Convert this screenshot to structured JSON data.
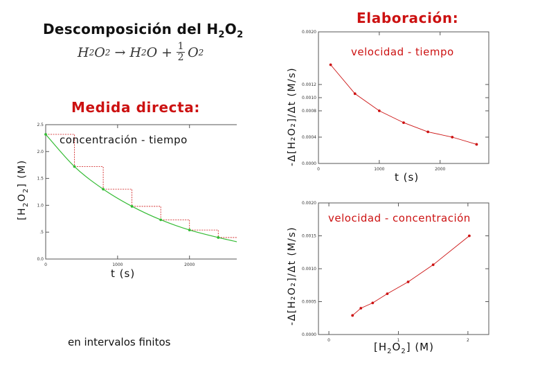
{
  "titles": {
    "main_text": "Descomposición del H",
    "main_sub1": "2",
    "main_o": "O",
    "main_sub2": "2",
    "elaboracion": "Elaboración:",
    "medida": "Medida directa:"
  },
  "equation": {
    "h": "H",
    "s2": "2",
    "o": "O",
    "s2b": "2",
    "arrow": "→",
    "h2": "H",
    "s2c": "2",
    "o2": "O",
    "plus": "+",
    "num": "1",
    "den": "2",
    "o3": "O",
    "s2d": "2"
  },
  "charts_labels": {
    "left_series_label": "concentración - tiempo",
    "left_ylabel_pre": "[H",
    "left_ylabel_s1": "2",
    "left_ylabel_mid": "O",
    "left_ylabel_s2": "2",
    "left_ylabel_post": "]  (M)",
    "left_xlabel": "t  (s)",
    "top_right_label": "velocidad - tiempo",
    "top_right_ylabel": "-Δ[H₂O₂]/Δt  (M/s)",
    "top_right_xlabel": "t  (s)",
    "bottom_right_label": "velocidad - concentración",
    "bottom_right_ylabel": "-Δ[H₂O₂]/Δt  (M/s)",
    "bottom_right_xlabel_pre": "[H",
    "bottom_right_xlabel_s1": "2",
    "bottom_right_xlabel_mid": "O",
    "bottom_right_xlabel_s2": "2",
    "bottom_right_xlabel_post": "]   (M)",
    "caption": "en intervalos finitos"
  },
  "colors": {
    "green": "#33bb33",
    "red": "#cc1111",
    "axis": "#555555"
  },
  "chart_data": [
    {
      "type": "line",
      "series": [
        {
          "x": [
            0,
            400,
            800,
            1200,
            1600,
            2000,
            2400,
            2800
          ],
          "y": [
            2.32,
            1.72,
            1.3,
            0.98,
            0.73,
            0.54,
            0.4,
            0.28
          ]
        }
      ],
      "xticks": [
        "0",
        "1000",
        "2000"
      ],
      "yticks": [
        "0.0",
        ".5",
        "1.0",
        "1.5",
        "2.0",
        "2.5"
      ],
      "xlim": [
        0,
        2850
      ],
      "ylim": [
        0,
        2.5
      ],
      "xlabel": "t  (s)",
      "ylabel": "[H2O2]  (M)",
      "annotation": "concentración - tiempo"
    },
    {
      "type": "line",
      "series": [
        {
          "x": [
            200,
            600,
            1000,
            1400,
            1800,
            2200,
            2600
          ],
          "y": [
            0.0015,
            0.00106,
            0.0008,
            0.00062,
            0.00048,
            0.0004,
            0.00029
          ]
        }
      ],
      "xticks": [
        "0",
        "1000",
        "2000"
      ],
      "yticks": [
        "0.0000",
        "0.0004",
        "0.0008",
        "0.0010",
        "0.0012",
        "0.0020"
      ],
      "xlim": [
        0,
        2800
      ],
      "ylim": [
        0,
        0.002
      ],
      "xlabel": "t  (s)",
      "ylabel": "-Δ[H2O2]/Δt  (M/s)",
      "annotation": "velocidad - tiempo"
    },
    {
      "type": "line",
      "series": [
        {
          "x": [
            0.34,
            0.46,
            0.63,
            0.84,
            1.14,
            1.5,
            2.02
          ],
          "y": [
            0.00029,
            0.0004,
            0.00048,
            0.00062,
            0.0008,
            0.00106,
            0.0015
          ]
        }
      ],
      "xticks": [
        "0",
        "1",
        "2"
      ],
      "yticks": [
        "0.0000",
        "0.0005",
        "0.0010",
        "0.0015",
        "0.0020"
      ],
      "xlim": [
        -0.15,
        2.3
      ],
      "ylim": [
        0,
        0.002
      ],
      "xlabel": "[H2O2]   (M)",
      "ylabel": "-Δ[H2O2]/Δt  (M/s)",
      "annotation": "velocidad - concentración"
    }
  ]
}
